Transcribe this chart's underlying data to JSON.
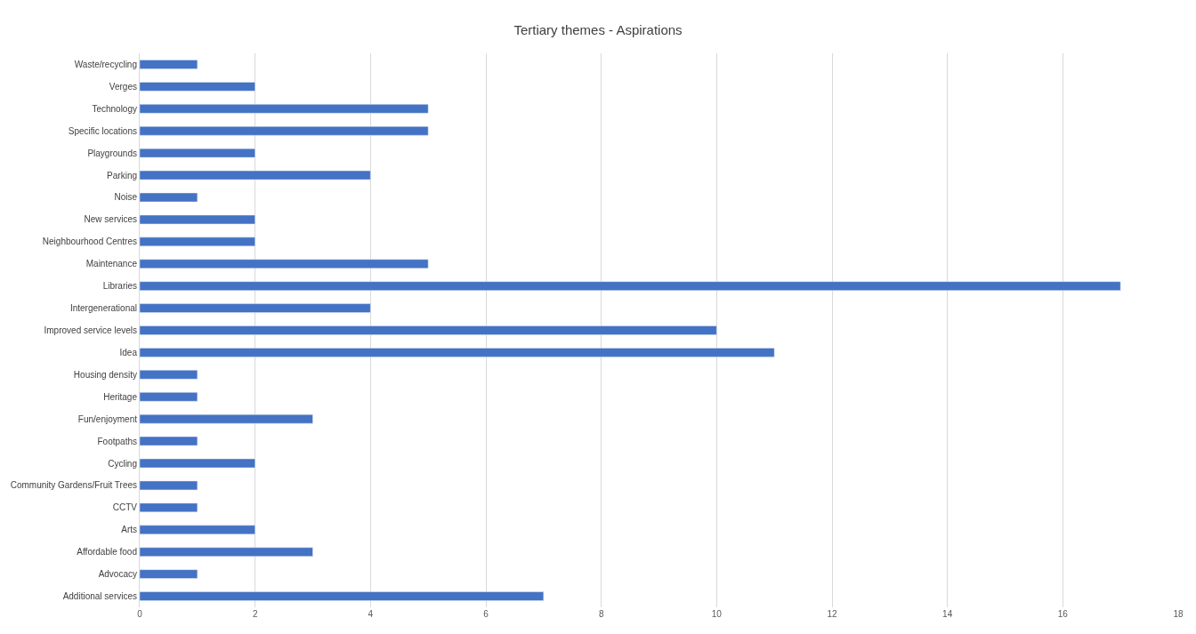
{
  "chart_data": {
    "type": "bar",
    "title": "Tertiary themes - Aspirations",
    "orientation": "horizontal",
    "categories": [
      "Waste/recycling",
      "Verges",
      "Technology",
      "Specific locations",
      "Playgrounds",
      "Parking",
      "Noise",
      "New services",
      "Neighbourhood Centres",
      "Maintenance",
      "Libraries",
      "Intergenerational",
      "Improved service levels",
      "Idea",
      "Housing density",
      "Heritage",
      "Fun/enjoyment",
      "Footpaths",
      "Cycling",
      "Community Gardens/Fruit Trees",
      "CCTV",
      "Arts",
      "Affordable food",
      "Advocacy",
      "Additional services"
    ],
    "values": [
      1,
      2,
      5,
      5,
      2,
      4,
      1,
      2,
      2,
      5,
      17,
      4,
      10,
      11,
      1,
      1,
      3,
      1,
      2,
      1,
      1,
      2,
      3,
      1,
      7
    ],
    "color": "#4472c4",
    "xlim": [
      0,
      18
    ],
    "xticks": [
      0,
      2,
      4,
      6,
      8,
      10,
      12,
      14,
      16,
      18
    ],
    "grid": "x"
  }
}
